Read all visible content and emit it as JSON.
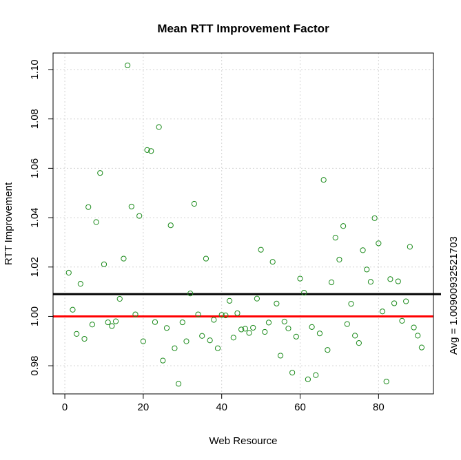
{
  "chart_data": {
    "type": "scatter",
    "title": "Mean RTT Improvement Factor",
    "xlabel": "Web Resource",
    "ylabel": "RTT Improvement",
    "xlim": [
      -3,
      94
    ],
    "ylim": [
      0.9686,
      1.1067
    ],
    "x_ticks": [
      0,
      20,
      40,
      60,
      80
    ],
    "x_tick_labels": [
      "0",
      "20",
      "40",
      "60",
      "80"
    ],
    "y_ticks": [
      0.98,
      1.0,
      1.02,
      1.04,
      1.06,
      1.08,
      1.1
    ],
    "y_tick_labels": [
      "0.98",
      "1.00",
      "1.02",
      "1.04",
      "1.06",
      "1.08",
      "1.10"
    ],
    "grid": true,
    "point_color": "#1a8a1a",
    "avg_value": 1.00900932521703,
    "avg_line_color": "#000000",
    "avg_label": "Avg = 1.00900932521703",
    "reference_value": 1.0,
    "reference_line_color": "#ff0000",
    "x": [
      1,
      2,
      3,
      4,
      5,
      6,
      7,
      8,
      9,
      10,
      11,
      12,
      13,
      14,
      15,
      16,
      17,
      18,
      19,
      20,
      21,
      22,
      23,
      24,
      25,
      26,
      27,
      28,
      29,
      30,
      31,
      32,
      33,
      34,
      35,
      36,
      37,
      38,
      39,
      40,
      41,
      42,
      43,
      44,
      45,
      46,
      47,
      48,
      49,
      50,
      51,
      52,
      53,
      54,
      55,
      56,
      57,
      58,
      59,
      60,
      61,
      62,
      63,
      64,
      65,
      66,
      67,
      68,
      69,
      70,
      71,
      72,
      73,
      74,
      75,
      76,
      77,
      78,
      79,
      80,
      81,
      82,
      83,
      84,
      85,
      86,
      87,
      88,
      89,
      90,
      91
    ],
    "y": [
      1.0177,
      1.0027,
      0.9929,
      1.0132,
      0.9909,
      1.0443,
      0.9967,
      1.0382,
      1.0581,
      1.0211,
      0.9976,
      0.9961,
      0.998,
      1.0071,
      1.0234,
      1.1017,
      1.0445,
      1.0008,
      1.0407,
      0.9899,
      1.0674,
      1.067,
      0.9977,
      1.0767,
      0.9821,
      0.9953,
      1.0369,
      0.9871,
      0.9727,
      0.9976,
      0.9899,
      1.0093,
      1.0456,
      1.0008,
      0.9921,
      1.0234,
      0.9903,
      0.9986,
      0.9871,
      1.0006,
      1.0004,
      1.0063,
      0.9914,
      1.0013,
      0.9947,
      0.995,
      0.9933,
      0.9954,
      1.0072,
      1.027,
      0.9937,
      0.9975,
      1.0221,
      1.0052,
      0.9841,
      0.9979,
      0.9951,
      0.9772,
      0.9918,
      1.0153,
      1.0096,
      0.9745,
      0.9957,
      0.9762,
      0.9931,
      1.0553,
      0.9864,
      1.0138,
      1.0319,
      1.023,
      1.0366,
      0.9969,
      1.0051,
      0.9922,
      0.9892,
      1.0268,
      1.019,
      1.014,
      1.0398,
      1.0296,
      1.002,
      0.9736,
      1.0151,
      1.0053,
      1.0142,
      0.9982,
      1.0061,
      1.0282,
      0.9955,
      0.9922,
      0.9874
    ]
  }
}
